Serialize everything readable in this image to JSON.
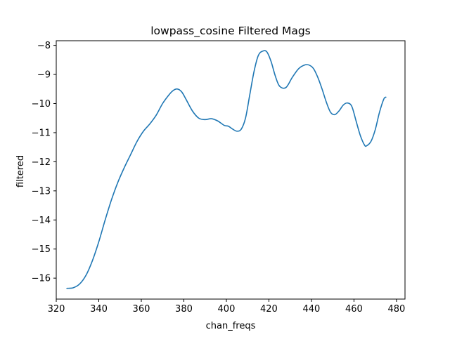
{
  "chart_data": {
    "type": "line",
    "title": "lowpass_cosine Filtered Mags",
    "xlabel": "chan_freqs",
    "ylabel": "filtered",
    "xlim": [
      320,
      484
    ],
    "ylim": [
      -16.72,
      -7.84
    ],
    "xticks": [
      320,
      340,
      360,
      380,
      400,
      420,
      440,
      460,
      480
    ],
    "yticks": [
      -16,
      -15,
      -14,
      -13,
      -12,
      -11,
      -10,
      -9,
      -8
    ],
    "xtick_labels": [
      "320",
      "340",
      "360",
      "380",
      "400",
      "420",
      "440",
      "460",
      "480"
    ],
    "ytick_labels": [
      "−16",
      "−15",
      "−14",
      "−13",
      "−12",
      "−11",
      "−10",
      "−9",
      "−8"
    ],
    "grid": false,
    "series": [
      {
        "color": "#1f77b4",
        "x": [
          325,
          328,
          331,
          334,
          337,
          340,
          343,
          346,
          349,
          352,
          355,
          358,
          361,
          364,
          367,
          370,
          373,
          375,
          377,
          379,
          381,
          384,
          387,
          390,
          393,
          396,
          399,
          401,
          403,
          405,
          407,
          409,
          411,
          413,
          415,
          417,
          419,
          421,
          423,
          425,
          428,
          431,
          434,
          437,
          439,
          441,
          443,
          445,
          447,
          449,
          451,
          453,
          455,
          457,
          459,
          461,
          463,
          465,
          466,
          468,
          470,
          472,
          474,
          475
        ],
        "y": [
          -16.35,
          -16.33,
          -16.2,
          -15.9,
          -15.4,
          -14.75,
          -14.0,
          -13.3,
          -12.7,
          -12.2,
          -11.75,
          -11.3,
          -10.95,
          -10.7,
          -10.4,
          -10.0,
          -9.7,
          -9.55,
          -9.5,
          -9.6,
          -9.85,
          -10.25,
          -10.5,
          -10.55,
          -10.52,
          -10.6,
          -10.75,
          -10.78,
          -10.88,
          -10.95,
          -10.88,
          -10.5,
          -9.7,
          -8.9,
          -8.35,
          -8.2,
          -8.22,
          -8.55,
          -9.05,
          -9.4,
          -9.45,
          -9.1,
          -8.8,
          -8.67,
          -8.68,
          -8.8,
          -9.1,
          -9.5,
          -9.95,
          -10.3,
          -10.38,
          -10.25,
          -10.05,
          -9.98,
          -10.1,
          -10.6,
          -11.1,
          -11.43,
          -11.45,
          -11.3,
          -10.9,
          -10.3,
          -9.85,
          -9.78
        ]
      }
    ]
  }
}
